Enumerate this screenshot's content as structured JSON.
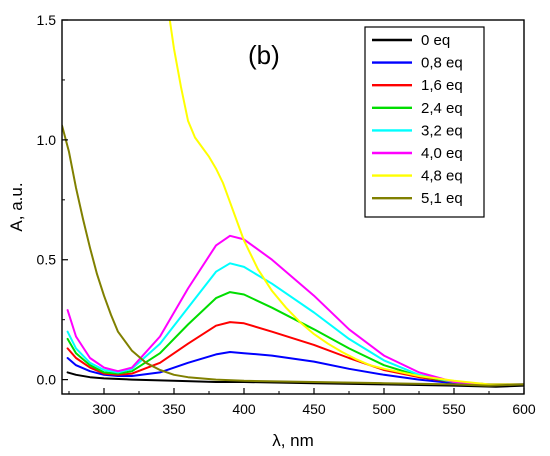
{
  "chart_data": {
    "type": "line",
    "panel_label": "(b)",
    "xlabel": "λ, nm",
    "ylabel": "A, a.u.",
    "xlim": [
      270,
      600
    ],
    "ylim": [
      -0.06,
      1.5
    ],
    "x_ticks": [
      300,
      350,
      400,
      450,
      500,
      550,
      600
    ],
    "y_ticks": [
      0.0,
      0.5,
      1.0,
      1.5
    ],
    "x_tick_labels": [
      "300",
      "350",
      "400",
      "450",
      "500",
      "550",
      "600"
    ],
    "y_tick_labels": [
      "0.0",
      "0.5",
      "1.0",
      "1.5"
    ],
    "grid": false,
    "legend_position": "top-right",
    "series": [
      {
        "name": "0 eq",
        "color": "#000000",
        "x": [
          274,
          280,
          290,
          300,
          320,
          350,
          380,
          400,
          450,
          500,
          550,
          580,
          600
        ],
        "y": [
          0.03,
          0.02,
          0.01,
          0.005,
          0.0,
          -0.005,
          -0.01,
          -0.01,
          -0.015,
          -0.02,
          -0.025,
          -0.03,
          -0.025
        ]
      },
      {
        "name": "0,8 eq",
        "color": "#0000ff",
        "x": [
          274,
          280,
          290,
          300,
          310,
          320,
          340,
          360,
          380,
          390,
          400,
          420,
          450,
          475,
          500,
          525,
          550,
          575,
          600
        ],
        "y": [
          0.09,
          0.06,
          0.035,
          0.02,
          0.015,
          0.015,
          0.03,
          0.07,
          0.105,
          0.115,
          0.11,
          0.1,
          0.075,
          0.045,
          0.02,
          0.0,
          -0.015,
          -0.02,
          -0.02
        ]
      },
      {
        "name": "1,6 eq",
        "color": "#ff0000",
        "x": [
          274,
          280,
          290,
          300,
          310,
          320,
          340,
          360,
          380,
          390,
          400,
          420,
          450,
          475,
          500,
          525,
          550,
          575,
          600
        ],
        "y": [
          0.13,
          0.09,
          0.05,
          0.025,
          0.02,
          0.025,
          0.07,
          0.15,
          0.225,
          0.24,
          0.235,
          0.2,
          0.145,
          0.09,
          0.04,
          0.01,
          -0.01,
          -0.02,
          -0.02
        ]
      },
      {
        "name": "2,4 eq",
        "color": "#00dd00",
        "x": [
          274,
          280,
          290,
          300,
          310,
          320,
          340,
          360,
          380,
          390,
          400,
          420,
          450,
          475,
          500,
          525,
          550,
          575,
          600
        ],
        "y": [
          0.17,
          0.11,
          0.06,
          0.03,
          0.025,
          0.035,
          0.11,
          0.23,
          0.34,
          0.365,
          0.355,
          0.3,
          0.21,
          0.13,
          0.06,
          0.015,
          -0.01,
          -0.02,
          -0.02
        ]
      },
      {
        "name": "3,2 eq",
        "color": "#00ffff",
        "x": [
          274,
          280,
          290,
          300,
          310,
          320,
          340,
          360,
          380,
          390,
          400,
          420,
          450,
          475,
          500,
          525,
          550,
          575,
          600
        ],
        "y": [
          0.2,
          0.13,
          0.07,
          0.04,
          0.03,
          0.045,
          0.15,
          0.3,
          0.45,
          0.485,
          0.47,
          0.4,
          0.28,
          0.17,
          0.08,
          0.02,
          -0.01,
          -0.02,
          -0.02
        ]
      },
      {
        "name": "4,0 eq",
        "color": "#ff00ff",
        "x": [
          274,
          280,
          290,
          300,
          310,
          320,
          340,
          360,
          380,
          390,
          400,
          420,
          450,
          475,
          500,
          525,
          550,
          575,
          600
        ],
        "y": [
          0.29,
          0.18,
          0.09,
          0.05,
          0.035,
          0.05,
          0.18,
          0.38,
          0.56,
          0.6,
          0.585,
          0.5,
          0.35,
          0.21,
          0.1,
          0.03,
          -0.01,
          -0.02,
          -0.02
        ]
      },
      {
        "name": "4,8 eq",
        "color": "#ffff00",
        "x": [
          347,
          350,
          355,
          360,
          365,
          370,
          375,
          380,
          385,
          390,
          395,
          400,
          410,
          420,
          430,
          440,
          450,
          460,
          470,
          480,
          490,
          500,
          525,
          550,
          575,
          600
        ],
        "y": [
          1.5,
          1.38,
          1.22,
          1.08,
          1.01,
          0.97,
          0.93,
          0.88,
          0.82,
          0.74,
          0.66,
          0.58,
          0.46,
          0.37,
          0.3,
          0.24,
          0.19,
          0.15,
          0.115,
          0.085,
          0.06,
          0.045,
          0.015,
          -0.005,
          -0.02,
          -0.02
        ]
      },
      {
        "name": "5,1 eq",
        "color": "#808000",
        "x": [
          270,
          275,
          280,
          285,
          290,
          295,
          300,
          305,
          310,
          320,
          330,
          340,
          350,
          360,
          380,
          400,
          450,
          500,
          550,
          575,
          600
        ],
        "y": [
          1.06,
          0.95,
          0.8,
          0.67,
          0.55,
          0.44,
          0.35,
          0.27,
          0.2,
          0.12,
          0.07,
          0.04,
          0.02,
          0.01,
          0.0,
          -0.005,
          -0.01,
          -0.015,
          -0.02,
          -0.025,
          -0.02
        ]
      }
    ]
  }
}
